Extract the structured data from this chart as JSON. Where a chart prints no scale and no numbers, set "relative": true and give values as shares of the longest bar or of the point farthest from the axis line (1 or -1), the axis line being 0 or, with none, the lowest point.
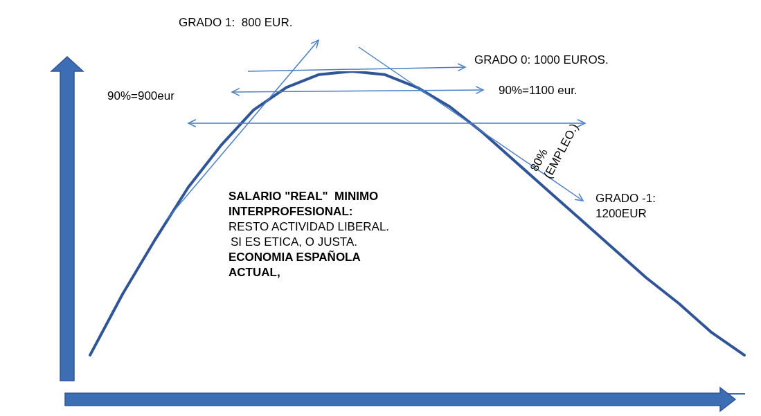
{
  "chart_data": {
    "type": "line",
    "relative": true,
    "marker": "none",
    "categories": [
      null,
      null,
      null,
      null,
      null,
      null,
      null,
      null,
      null,
      null,
      null,
      null,
      null,
      null,
      null,
      null,
      null,
      null,
      null,
      null,
      null
    ],
    "series": [
      {
        "color": "#2f5597",
        "values": [
          0.12,
          0.31,
          0.48,
          0.64,
          0.77,
          0.88,
          0.95,
          0.99,
          1.0,
          0.99,
          0.95,
          0.89,
          0.81,
          0.72,
          0.63,
          0.54,
          0.45,
          0.36,
          0.28,
          0.19,
          0.12
        ]
      }
    ],
    "annotations": [
      "GRADO 1:  800 EUR.",
      "GRADO 0: 1000 EUROS.",
      "90%=900eur",
      "90%=1100 eur.",
      "80%\n(EMPLEO.)",
      "GRADO -1:\n1200EUR",
      "SALARIO \"REAL\"  MINIMO\nINTERPROFESIONAL:",
      "RESTO ACTIVIDAD LIBERAL.",
      "SI ES ETICA, O JUSTA.",
      "ECONOMIA ESPAÑOLA\nACTUAL,"
    ]
  }
}
